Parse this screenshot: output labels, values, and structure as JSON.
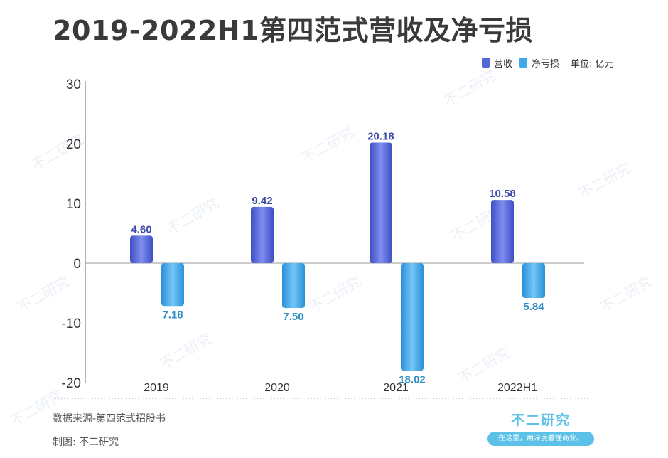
{
  "title": "2019-2022H1第四范式营收及净亏损",
  "legend": {
    "revenue_label": "营收",
    "loss_label": "净亏损",
    "unit": "单位: 亿元"
  },
  "colors": {
    "revenue": "#5566d6",
    "loss": "#3fa9ec",
    "revenue_label": "#3c4aa8",
    "loss_label": "#2f8fc7"
  },
  "source": "数据来源-第四范式招股书",
  "made_by": "制图: 不二研究",
  "brand": {
    "name": "不二研究",
    "slogan": "在这里，用深度看懂商业。"
  },
  "watermark": "不二研究",
  "chart_data": {
    "type": "bar",
    "categories": [
      "2019",
      "2020",
      "2021",
      "2022H1"
    ],
    "series": [
      {
        "name": "营收",
        "values": [
          4.6,
          9.42,
          20.18,
          10.58
        ],
        "labels": [
          "4.60",
          "9.42",
          "20.18",
          "10.58"
        ]
      },
      {
        "name": "净亏损",
        "values": [
          -7.18,
          -7.5,
          -18.02,
          -5.84
        ],
        "labels": [
          "7.18",
          "7.50",
          "18.02",
          "5.84"
        ]
      }
    ],
    "ylim": [
      -20,
      30
    ],
    "yticks": [
      30,
      20,
      10,
      0,
      -10,
      -20
    ],
    "xlabel": "",
    "ylabel": "",
    "grid": false,
    "legend_position": "top-right"
  }
}
